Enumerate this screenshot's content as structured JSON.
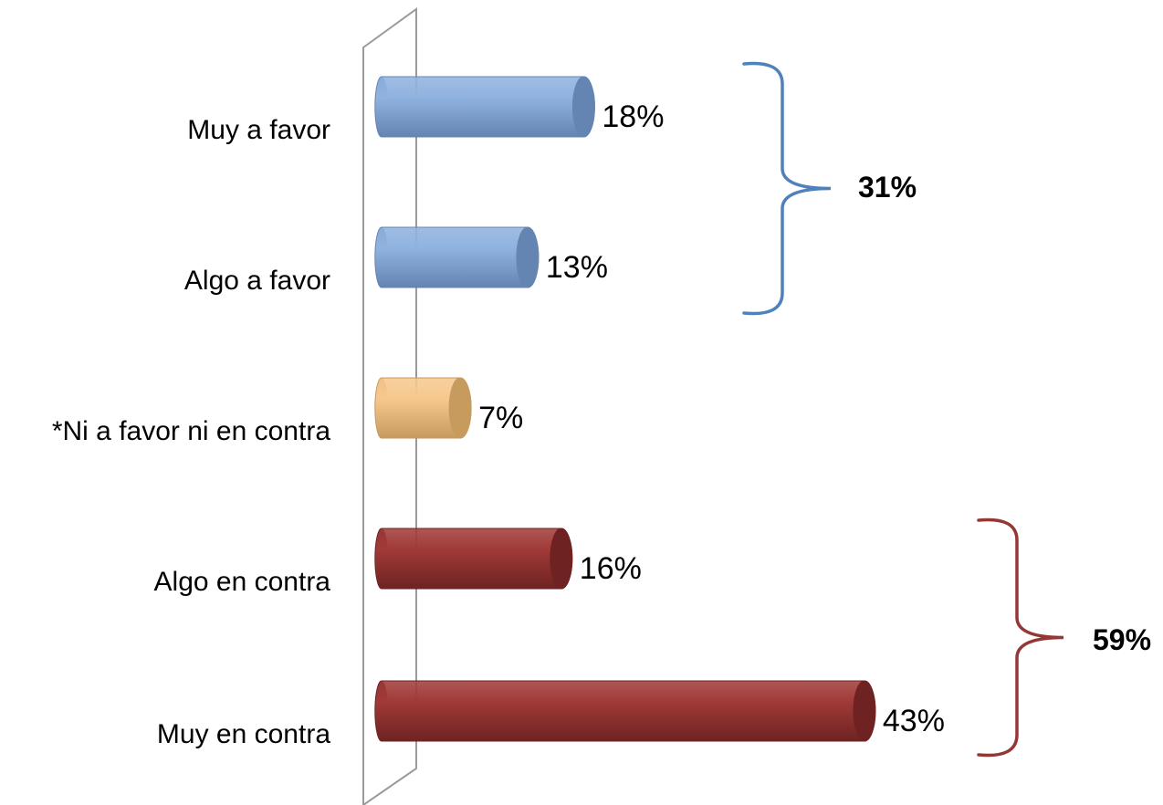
{
  "chart_data": {
    "type": "bar",
    "orientation": "horizontal",
    "categories": [
      "Muy a favor",
      "Algo a favor",
      "*Ni a favor ni en contra",
      "Algo en contra",
      "Muy en contra"
    ],
    "values": [
      18,
      13,
      7,
      16,
      43
    ],
    "value_labels": [
      "18%",
      "13%",
      "7%",
      "16%",
      "43%"
    ],
    "bar_colors": [
      "#8fb2df",
      "#8fb2df",
      "#f6c88e",
      "#a03a38",
      "#a03a38"
    ],
    "bar_shades": [
      "#6484b2",
      "#6484b2",
      "#c79a5e",
      "#6e2322",
      "#6e2322"
    ],
    "xlim": [
      0,
      45
    ],
    "grid": false,
    "groups": [
      {
        "label": "31%",
        "from_index": 0,
        "to_index": 1,
        "color": "#4f81bd"
      },
      {
        "label": "59%",
        "from_index": 3,
        "to_index": 4,
        "color": "#953735"
      }
    ]
  }
}
